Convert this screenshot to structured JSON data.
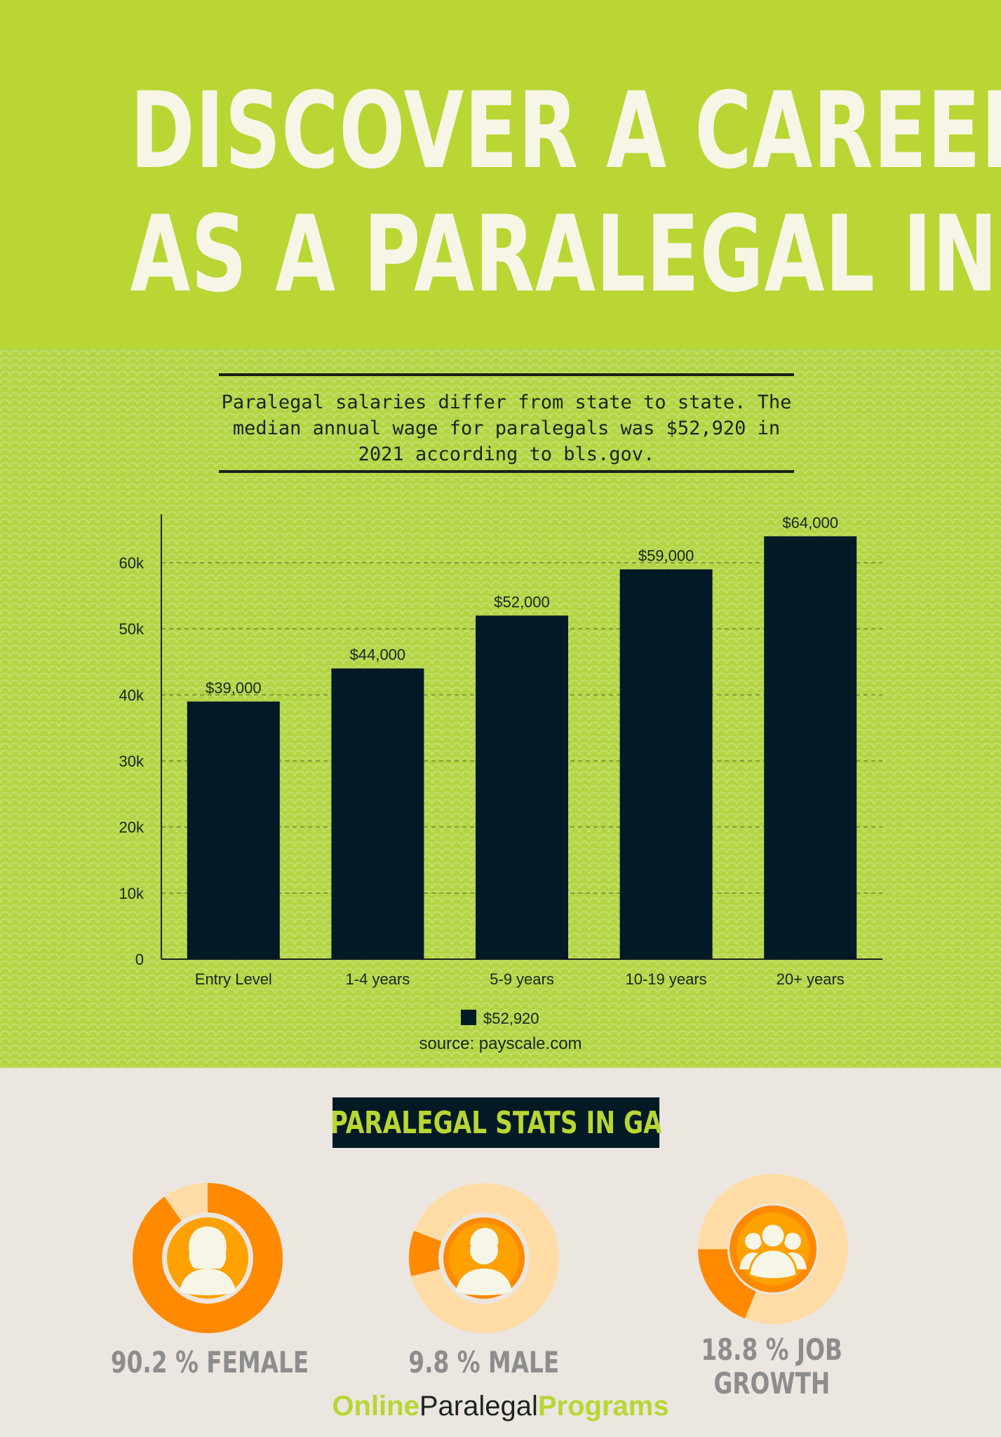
{
  "header": {
    "title_line1": "DISCOVER A CAREER",
    "title_line2": "AS A PARALEGAL IN GA",
    "bg_color": "#b9d634"
  },
  "intro": {
    "line1": "Paralegal salaries differ from state to state. The",
    "line2": "median annual wage for paralegals was $52,920 in",
    "line3": "2021 according to bls.gov."
  },
  "chart_data": {
    "type": "bar",
    "categories": [
      "Entry Level",
      "1-4 years",
      "5-9 years",
      "10-19 years",
      "20+ years"
    ],
    "series": [
      {
        "name": "$52,920",
        "values": [
          39000,
          44000,
          52000,
          59000,
          64000
        ],
        "color": "#021a26"
      }
    ],
    "data_labels": [
      "$39,000",
      "$44,000",
      "$52,000",
      "$59,000",
      "$64,000"
    ],
    "y_ticks": [
      0,
      10000,
      20000,
      30000,
      40000,
      50000,
      60000
    ],
    "y_tick_labels": [
      "0",
      "10k",
      "20k",
      "30k",
      "40k",
      "50k",
      "60k"
    ],
    "ylim": [
      0,
      67000
    ],
    "grid": true,
    "legend": "bottom-center",
    "title": "",
    "xlabel": "",
    "ylabel": ""
  },
  "source": "source: payscale.com",
  "stats": {
    "banner": "PARALEGAL STATS IN GA",
    "items": [
      {
        "label1": "90.2 % FEMALE",
        "label2": "",
        "percent": 90.2,
        "icon": "female-person-icon"
      },
      {
        "label1": "9.8 % MALE",
        "label2": "",
        "percent": 9.8,
        "icon": "male-person-icon"
      },
      {
        "label1": "18.8 % JOB",
        "label2": "GROWTH",
        "percent": 18.8,
        "icon": "group-people-icon"
      }
    ],
    "colors": {
      "ring_fill": "#ff8a00",
      "ring_bg": "#ffdca6",
      "inner": "#ffa100",
      "icon": "#f7f6e6"
    }
  },
  "brand": {
    "part1": "Online",
    "part2": "Paralegal",
    "part3": "Programs"
  },
  "colors": {
    "accent_green": "#b9d634",
    "dark": "#031a25",
    "page_bg": "#ebe6e0"
  }
}
